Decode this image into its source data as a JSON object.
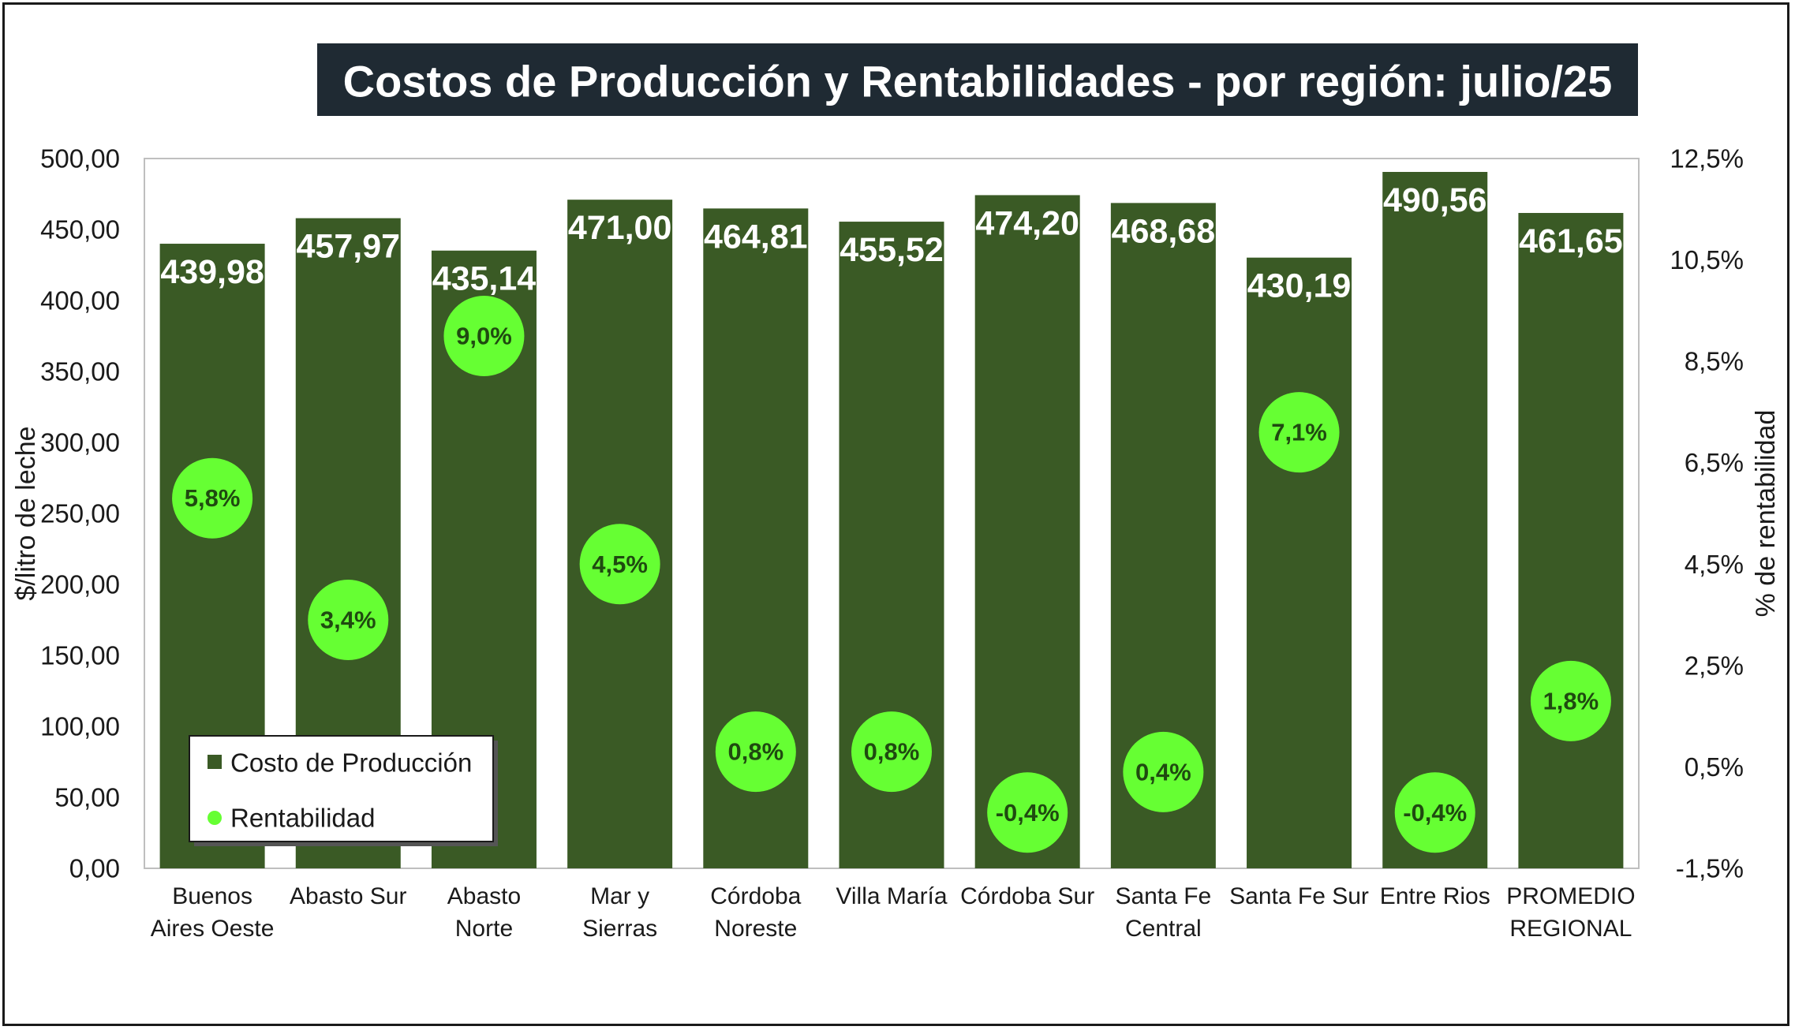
{
  "chart_data": {
    "type": "bar",
    "title": "Costos de Producción y Rentabilidades - por región: julio/25",
    "ylabel": "$/litro de leche",
    "y2label": "% de rentabilidad",
    "ylim": [
      0,
      500
    ],
    "y2lim": [
      -1.5,
      12.5
    ],
    "yticks": [
      "0,00",
      "50,00",
      "100,00",
      "150,00",
      "200,00",
      "250,00",
      "300,00",
      "350,00",
      "400,00",
      "450,00",
      "500,00"
    ],
    "y2ticks": [
      "-1,5%",
      "0,5%",
      "2,5%",
      "4,5%",
      "6,5%",
      "8,5%",
      "10,5%",
      "12,5%"
    ],
    "categories": [
      [
        "Buenos",
        "Aires Oeste"
      ],
      [
        "Abasto Sur"
      ],
      [
        "Abasto",
        "Norte"
      ],
      [
        "Mar y",
        "Sierras"
      ],
      [
        "Córdoba",
        "Noreste"
      ],
      [
        "Villa María"
      ],
      [
        "Córdoba Sur"
      ],
      [
        "Santa Fe",
        "Central"
      ],
      [
        "Santa Fe Sur"
      ],
      [
        "Entre Rios"
      ],
      [
        "PROMEDIO",
        "REGIONAL"
      ]
    ],
    "series": [
      {
        "name": "Costo de Producción",
        "type": "bar",
        "axis": "left",
        "color": "#3a5a25",
        "values": [
          439.98,
          457.97,
          435.14,
          471.0,
          464.81,
          455.52,
          474.2,
          468.68,
          430.19,
          490.56,
          461.65
        ],
        "labels": [
          "439,98",
          "457,97",
          "435,14",
          "471,00",
          "464,81",
          "455,52",
          "474,20",
          "468,68",
          "430,19",
          "490,56",
          "461,65"
        ]
      },
      {
        "name": "Rentabilidad",
        "type": "scatter",
        "axis": "right",
        "color": "#66ff33",
        "values": [
          5.8,
          3.4,
          9.0,
          4.5,
          0.8,
          0.8,
          -0.4,
          0.4,
          7.1,
          -0.4,
          1.8
        ],
        "labels": [
          "5,8%",
          "3,4%",
          "9,0%",
          "4,5%",
          "0,8%",
          "0,8%",
          "-0,4%",
          "0,4%",
          "7,1%",
          "-0,4%",
          "1,8%"
        ]
      }
    ],
    "legend_position": "bottom-left (inside plot)",
    "grid": false,
    "title_background": "#1f2a33",
    "plot_background": "#ffffff"
  }
}
